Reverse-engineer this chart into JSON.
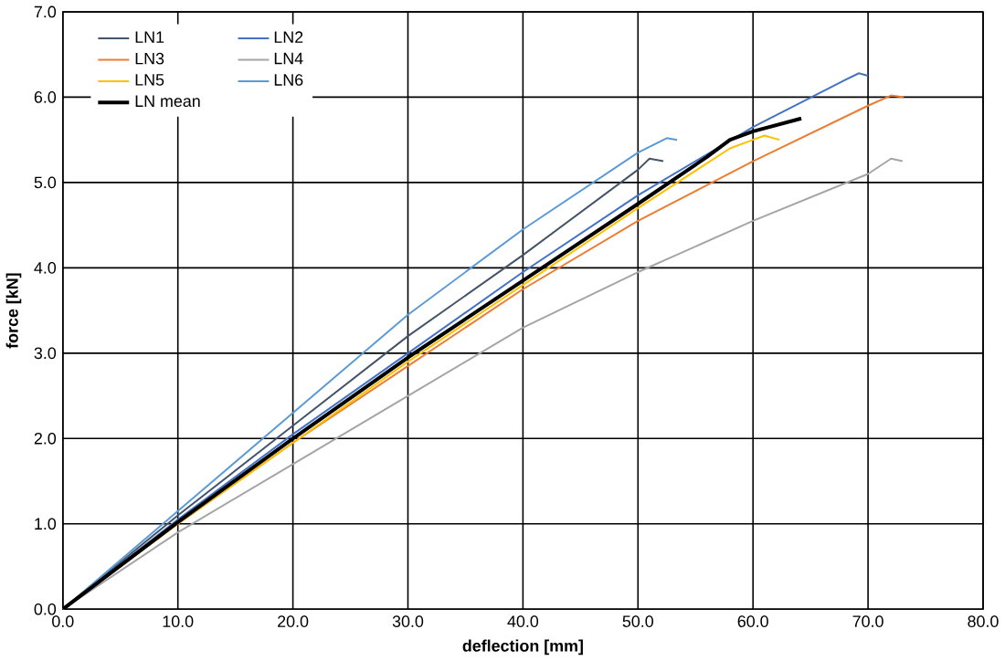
{
  "chart_data": {
    "type": "line",
    "xlabel": "deflection [mm]",
    "ylabel": "force [kN]",
    "xlim": [
      0,
      80
    ],
    "ylim": [
      0,
      7
    ],
    "xticks": [
      {
        "value": 0,
        "label": "0.0"
      },
      {
        "value": 10,
        "label": "10.0"
      },
      {
        "value": 20,
        "label": "20.0"
      },
      {
        "value": 30,
        "label": "30.0"
      },
      {
        "value": 40,
        "label": "40.0"
      },
      {
        "value": 50,
        "label": "50.0"
      },
      {
        "value": 60,
        "label": "60.0"
      },
      {
        "value": 70,
        "label": "70.0"
      },
      {
        "value": 80,
        "label": "80.0"
      }
    ],
    "yticks": [
      {
        "value": 0,
        "label": "0.0"
      },
      {
        "value": 1,
        "label": "1.0"
      },
      {
        "value": 2,
        "label": "2.0"
      },
      {
        "value": 3,
        "label": "3.0"
      },
      {
        "value": 4,
        "label": "4.0"
      },
      {
        "value": 5,
        "label": "5.0"
      },
      {
        "value": 6,
        "label": "6.0"
      },
      {
        "value": 7,
        "label": "7.0"
      }
    ],
    "grid": true,
    "legend": "top left",
    "marker": "none",
    "line_style": "solid",
    "series": [
      {
        "name": "LN1",
        "color": "#44546a",
        "x": [
          0,
          10,
          20,
          30,
          40,
          50,
          51,
          52.2
        ],
        "values": [
          0,
          1.1,
          2.15,
          3.2,
          4.15,
          5.15,
          5.28,
          5.25
        ]
      },
      {
        "name": "LN2",
        "color": "#4472c4",
        "x": [
          0,
          10,
          20,
          30,
          40,
          50,
          60,
          68,
          69.2,
          70
        ],
        "values": [
          0,
          1.05,
          2.05,
          3.0,
          3.95,
          4.85,
          5.65,
          6.2,
          6.28,
          6.25
        ]
      },
      {
        "name": "LN3",
        "color": "#ed7d31",
        "x": [
          0,
          10,
          20,
          30,
          40,
          50,
          60,
          70,
          72,
          73.1
        ],
        "values": [
          0,
          1.0,
          1.95,
          2.85,
          3.75,
          4.55,
          5.25,
          5.9,
          6.02,
          6.0
        ]
      },
      {
        "name": "LN4",
        "color": "#a5a5a5",
        "x": [
          0,
          10,
          20,
          30,
          40,
          50,
          60,
          70,
          72,
          73
        ],
        "values": [
          0,
          0.9,
          1.7,
          2.5,
          3.3,
          3.95,
          4.55,
          5.1,
          5.28,
          5.25
        ]
      },
      {
        "name": "LN5",
        "color": "#ffc000",
        "x": [
          0,
          10,
          20,
          30,
          40,
          50,
          58,
          60,
          61,
          62.3
        ],
        "values": [
          0,
          1.0,
          1.95,
          2.9,
          3.8,
          4.7,
          5.4,
          5.5,
          5.55,
          5.5
        ]
      },
      {
        "name": "LN6",
        "color": "#5b9bd5",
        "x": [
          0,
          10,
          20,
          30,
          40,
          50,
          52.5,
          53.4
        ],
        "values": [
          0,
          1.15,
          2.3,
          3.45,
          4.45,
          5.35,
          5.52,
          5.5
        ]
      },
      {
        "name": "LN mean",
        "color": "#000000",
        "x": [
          0,
          10,
          20,
          30,
          40,
          50,
          56,
          58,
          60,
          64.2
        ],
        "values": [
          0,
          1.02,
          2.0,
          2.95,
          3.85,
          4.75,
          5.3,
          5.5,
          5.6,
          5.75
        ]
      }
    ]
  }
}
